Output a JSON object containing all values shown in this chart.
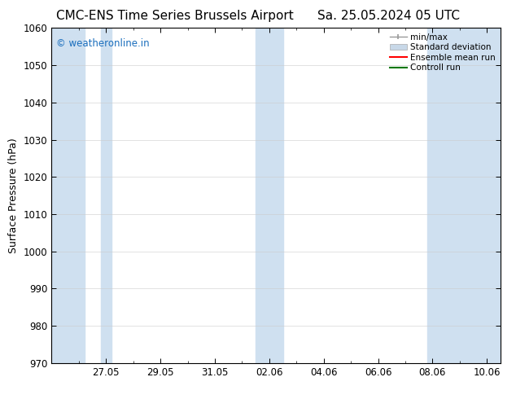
{
  "title_left": "CMC-ENS Time Series Brussels Airport",
  "title_right": "Sa. 25.05.2024 05 UTC",
  "ylabel": "Surface Pressure (hPa)",
  "ylim": [
    970,
    1060
  ],
  "yticks": [
    970,
    980,
    990,
    1000,
    1010,
    1020,
    1030,
    1040,
    1050,
    1060
  ],
  "xtick_labels": [
    "27.05",
    "29.05",
    "31.05",
    "02.06",
    "04.06",
    "06.06",
    "08.06",
    "10.06"
  ],
  "xtick_positions": [
    2,
    4,
    6,
    8,
    10,
    12,
    14,
    16
  ],
  "xlim": [
    0,
    16.5
  ],
  "shaded_bands": [
    {
      "x_start": 0.0,
      "x_end": 1.3
    },
    {
      "x_start": 1.7,
      "x_end": 2.3
    },
    {
      "x_start": 7.7,
      "x_end": 8.3
    },
    {
      "x_start": 14.7,
      "x_end": 16.5
    }
  ],
  "band_color": "#cfe0f0",
  "watermark_text": "© weatheronline.in",
  "watermark_color": "#1a6ebd",
  "legend_labels": [
    "min/max",
    "Standard deviation",
    "Ensemble mean run",
    "Controll run"
  ],
  "legend_colors_line": [
    "#aaaaaa",
    "#bbccdd",
    "#ff0000",
    "#007700"
  ],
  "background_color": "#ffffff",
  "grid_color": "#cccccc",
  "title_fontsize": 11,
  "tick_fontsize": 8.5,
  "ylabel_fontsize": 9
}
